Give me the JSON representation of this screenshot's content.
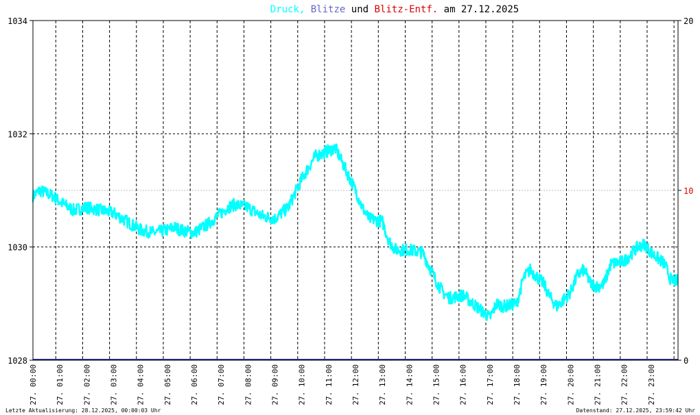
{
  "title": {
    "parts": [
      {
        "text": "Druck,",
        "color": "#00ffff"
      },
      {
        "text": "Blitze",
        "color": "#6666cc"
      },
      {
        "text": "und",
        "color": "#000000"
      },
      {
        "text": "Blitz-Entf.",
        "color": "#dd0000"
      },
      {
        "text": "am 27.12.2025",
        "color": "#000000"
      }
    ]
  },
  "footer": {
    "left": "Letzte Aktualisierung: 28.12.2025, 00:00:03 Uhr",
    "right": "Datenstand: 27.12.2025, 23:59:42 Uhr"
  },
  "chart_data": {
    "type": "line",
    "grid": true,
    "y_left": {
      "min": 1028,
      "max": 1034,
      "ticks": [
        "1028",
        "1030",
        "1032",
        "1034"
      ]
    },
    "y_right": {
      "min": 0,
      "max": 20,
      "ticks": [
        "0",
        "10",
        "20"
      ],
      "highlight_tick": "10",
      "highlight_color": "#dd0000"
    },
    "x_ticks": [
      "27. 00:00",
      "27. 01:00",
      "27. 02:00",
      "27. 03:00",
      "27. 04:00",
      "27. 05:00",
      "27. 06:00",
      "27. 07:00",
      "27. 08:00",
      "27. 09:00",
      "27. 10:00",
      "27. 11:00",
      "27. 12:00",
      "27. 13:00",
      "27. 14:00",
      "27. 15:00",
      "27. 16:00",
      "27. 17:00",
      "27. 18:00",
      "27. 19:00",
      "27. 20:00",
      "27. 21:00",
      "27. 22:00",
      "27. 23:00"
    ],
    "series": [
      {
        "name": "Druck",
        "color": "#00ffff",
        "x_hours": [
          0,
          0.25,
          0.5,
          0.75,
          1,
          1.5,
          2,
          2.5,
          3,
          3.5,
          4,
          4.5,
          5,
          5.25,
          5.5,
          6,
          6.5,
          7,
          7.25,
          7.5,
          8,
          8.5,
          9,
          9.25,
          9.5,
          10,
          10.5,
          11,
          11.25,
          11.5,
          12,
          12.25,
          12.5,
          13,
          13.25,
          13.5,
          14,
          14.5,
          15,
          15.25,
          15.5,
          16,
          16.25,
          16.5,
          16.75,
          17,
          17.25,
          17.5,
          18,
          18.25,
          18.5,
          19,
          19.25,
          19.5,
          20,
          20.25,
          20.5,
          20.75,
          21,
          21.25,
          21.5,
          22,
          22.5,
          22.75,
          23,
          23.5,
          23.75
        ],
        "values": [
          1030.9,
          1031.0,
          1030.95,
          1030.9,
          1030.8,
          1030.65,
          1030.7,
          1030.65,
          1030.6,
          1030.45,
          1030.3,
          1030.25,
          1030.3,
          1030.35,
          1030.3,
          1030.25,
          1030.4,
          1030.6,
          1030.7,
          1030.75,
          1030.7,
          1030.55,
          1030.5,
          1030.6,
          1030.7,
          1031.2,
          1031.6,
          1031.7,
          1031.75,
          1031.5,
          1031.0,
          1030.7,
          1030.5,
          1030.45,
          1030.1,
          1029.95,
          1029.95,
          1029.9,
          1029.4,
          1029.2,
          1029.1,
          1029.15,
          1029.05,
          1028.95,
          1028.85,
          1028.75,
          1029.0,
          1028.95,
          1029.0,
          1029.45,
          1029.6,
          1029.35,
          1029.1,
          1028.95,
          1029.2,
          1029.5,
          1029.6,
          1029.35,
          1029.3,
          1029.35,
          1029.7,
          1029.75,
          1030.0,
          1030.05,
          1029.9,
          1029.7,
          1029.4
        ]
      },
      {
        "name": "Blitze",
        "color": "#333399",
        "x_hours": [
          0,
          24
        ],
        "values": [
          0,
          0
        ]
      }
    ]
  }
}
